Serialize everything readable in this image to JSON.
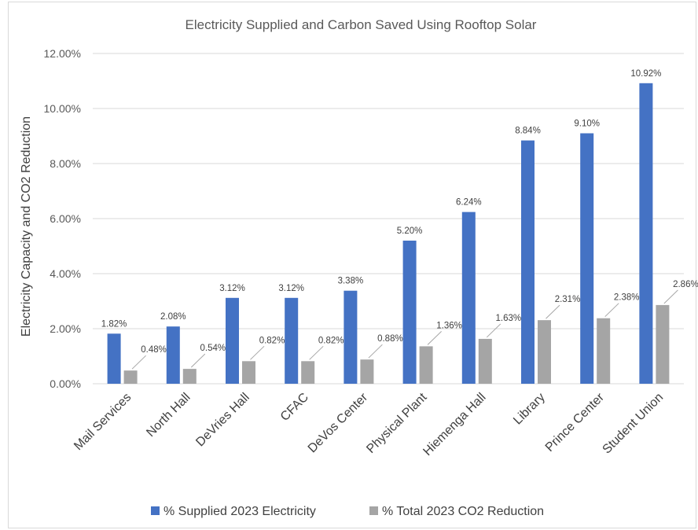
{
  "chart_data": {
    "type": "bar",
    "title": "Electricity Supplied and Carbon Saved Using Rooftop Solar",
    "xlabel": "",
    "ylabel": "Electricity Capacity and CO2 Reduction",
    "ylim": [
      0,
      12
    ],
    "yticks": [
      0,
      2,
      4,
      6,
      8,
      10,
      12
    ],
    "ytick_labels": [
      "0.00%",
      "2.00%",
      "4.00%",
      "6.00%",
      "8.00%",
      "10.00%",
      "12.00%"
    ],
    "y_unit": "%",
    "grid": true,
    "legend_position": "bottom",
    "categories": [
      "Mail Services",
      "North Hall",
      "DeVries Hall",
      "CFAC",
      "DeVos Center",
      "Physical Plant",
      "Hiemenga Hall",
      "Library",
      "Prince Center",
      "Student Union"
    ],
    "series": [
      {
        "name": "% Supplied 2023 Electricity",
        "color": "#4472c4",
        "values": [
          1.82,
          2.08,
          3.12,
          3.12,
          3.38,
          5.2,
          6.24,
          8.84,
          9.1,
          10.92
        ],
        "labels": [
          "1.82%",
          "2.08%",
          "3.12%",
          "3.12%",
          "3.38%",
          "5.20%",
          "6.24%",
          "8.84%",
          "9.10%",
          "10.92%"
        ]
      },
      {
        "name": "% Total 2023 CO2 Reduction",
        "color": "#a5a5a5",
        "values": [
          0.48,
          0.54,
          0.82,
          0.82,
          0.88,
          1.36,
          1.63,
          2.31,
          2.38,
          2.86
        ],
        "labels": [
          "0.48%",
          "0.54%",
          "0.82%",
          "0.82%",
          "0.88%",
          "1.36%",
          "1.63%",
          "2.31%",
          "2.38%",
          "2.86%"
        ]
      }
    ]
  }
}
